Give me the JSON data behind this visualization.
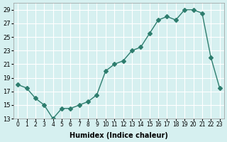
{
  "x": [
    0,
    1,
    2,
    3,
    4,
    5,
    6,
    7,
    8,
    9,
    10,
    11,
    12,
    13,
    14,
    15,
    16,
    17,
    18,
    19,
    20,
    21,
    22,
    23
  ],
  "y": [
    18,
    17.5,
    16,
    15,
    13,
    14.5,
    14.5,
    15,
    15.5,
    16.5,
    20,
    21,
    21.5,
    23,
    23.5,
    25.5,
    27.5,
    28,
    27.5,
    29,
    29,
    28.5,
    22,
    17.5
  ],
  "line_color": "#2e7d6e",
  "marker": "D",
  "marker_size": 3,
  "bg_color": "#d6f0f0",
  "grid_color": "#ffffff",
  "xlabel": "Humidex (Indice chaleur)",
  "ylim": [
    13,
    30
  ],
  "xlim": [
    -0.5,
    23.5
  ],
  "yticks": [
    13,
    15,
    17,
    19,
    21,
    23,
    25,
    27,
    29
  ],
  "xtick_labels": [
    "0",
    "1",
    "2",
    "3",
    "4",
    "5",
    "6",
    "7",
    "8",
    "9",
    "10",
    "11",
    "12",
    "13",
    "14",
    "15",
    "16",
    "17",
    "18",
    "19",
    "20",
    "21",
    "22",
    "23"
  ]
}
